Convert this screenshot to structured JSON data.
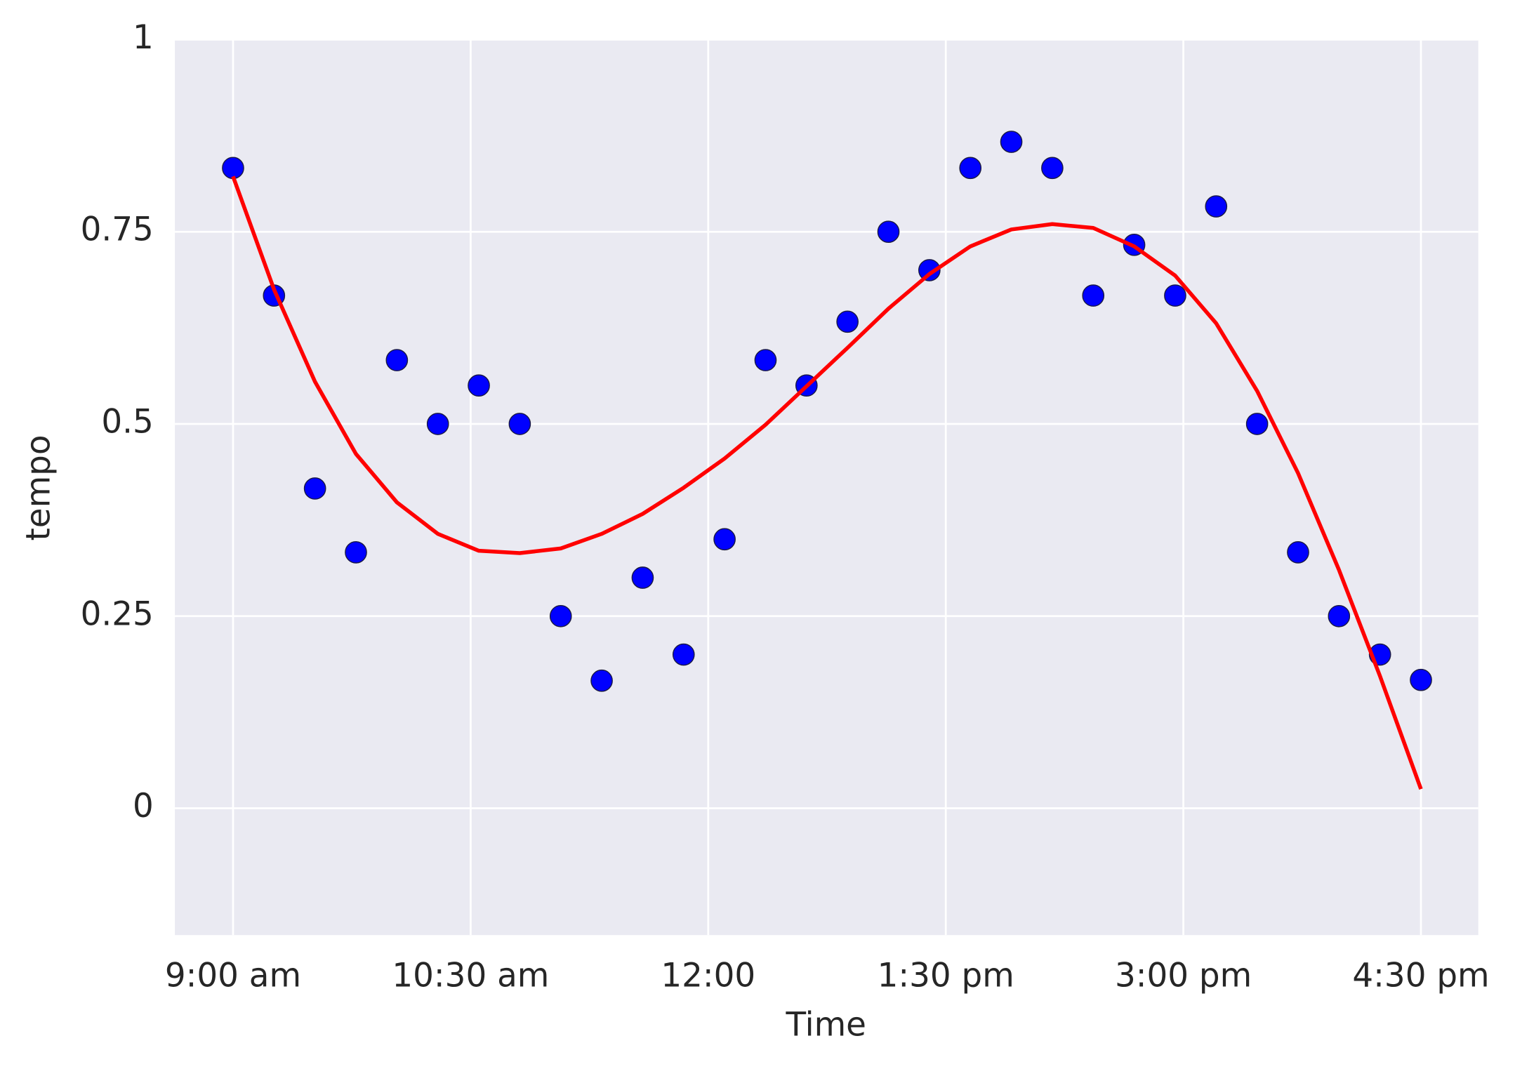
{
  "chart_data": {
    "type": "scatter",
    "x_label": "Time",
    "y_label": "tempo",
    "x": [
      0,
      1,
      2,
      3,
      4,
      5,
      6,
      7,
      8,
      9,
      10,
      11,
      12,
      13,
      14,
      15,
      16,
      17,
      18,
      19,
      20,
      21,
      22,
      23,
      24,
      25,
      26,
      27,
      28,
      29
    ],
    "series": [
      {
        "color": "#0000ff",
        "mode": "markers",
        "values": [
          0.833,
          0.667,
          0.416,
          0.333,
          0.583,
          0.5,
          0.55,
          0.5,
          0.25,
          0.166,
          0.3,
          0.2,
          0.35,
          0.583,
          0.55,
          0.633,
          0.75,
          0.7,
          0.833,
          0.867,
          0.833,
          0.667,
          0.733,
          0.667,
          0.783,
          0.5,
          0.333,
          0.25,
          0.2,
          0.167
        ]
      },
      {
        "color": "#ff0000",
        "mode": "line",
        "values": [
          0.822,
          0.675,
          0.555,
          0.461,
          0.398,
          0.357,
          0.335,
          0.332,
          0.338,
          0.357,
          0.383,
          0.417,
          0.455,
          0.499,
          0.549,
          0.599,
          0.65,
          0.695,
          0.731,
          0.753,
          0.76,
          0.755,
          0.731,
          0.693,
          0.631,
          0.543,
          0.436,
          0.31,
          0.172,
          0.025
        ]
      }
    ],
    "xlim": [
      -1.42,
      30.4
    ],
    "xticks": [
      {
        "value": 0,
        "label": "9:00 am"
      },
      {
        "value": 5.8,
        "label": "10:30 am"
      },
      {
        "value": 11.6,
        "label": "12:00"
      },
      {
        "value": 17.4,
        "label": "1:30 pm"
      },
      {
        "value": 23.2,
        "label": "3:00 pm"
      },
      {
        "value": 29,
        "label": "4:30 pm"
      }
    ],
    "ylim": [
      -0.165,
      1
    ],
    "yticks": [
      0,
      0.25,
      0.5,
      0.75,
      1
    ],
    "grid": true,
    "background": "#eaeaf2"
  }
}
